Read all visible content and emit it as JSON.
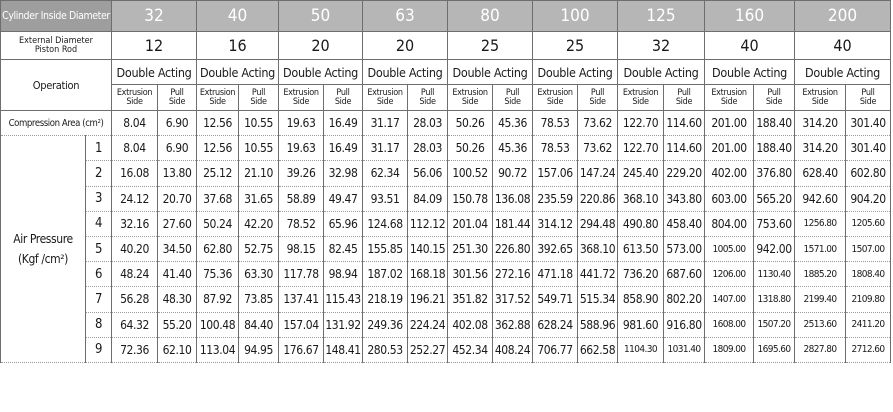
{
  "header": {
    "bore_label": "Cylinder Inside Diameter",
    "bores": [
      "32",
      "40",
      "50",
      "63",
      "80",
      "100",
      "125",
      "160",
      "200"
    ]
  },
  "rod": {
    "label_line1": "External Diameter",
    "label_line2": "Piston Rod",
    "values": [
      "12",
      "16",
      "20",
      "20",
      "25",
      "25",
      "32",
      "40",
      "40"
    ]
  },
  "operation": {
    "label": "Operation",
    "mode": "Double Acting",
    "extrusion_l1": "Extrusion",
    "extrusion_l2": "Side",
    "pull_l1": "Pull",
    "pull_l2": "Side"
  },
  "compression": {
    "label": "Compression Area (cm²)",
    "values": [
      "8.04",
      "6.90",
      "12.56",
      "10.55",
      "19.63",
      "16.49",
      "31.17",
      "28.03",
      "50.26",
      "45.36",
      "78.53",
      "73.62",
      "122.70",
      "114.60",
      "201.00",
      "188.40",
      "314.20",
      "301.40"
    ]
  },
  "air_pressure": {
    "label_line1": "Air Pressure",
    "label_line2": "(Kgf /cm²)",
    "rows": [
      {
        "p": "1",
        "v": [
          "8.04",
          "6.90",
          "12.56",
          "10.55",
          "19.63",
          "16.49",
          "31.17",
          "28.03",
          "50.26",
          "45.36",
          "78.53",
          "73.62",
          "122.70",
          "114.60",
          "201.00",
          "188.40",
          "314.20",
          "301.40"
        ]
      },
      {
        "p": "2",
        "v": [
          "16.08",
          "13.80",
          "25.12",
          "21.10",
          "39.26",
          "32.98",
          "62.34",
          "56.06",
          "100.52",
          "90.72",
          "157.06",
          "147.24",
          "245.40",
          "229.20",
          "402.00",
          "376.80",
          "628.40",
          "602.80"
        ]
      },
      {
        "p": "3",
        "v": [
          "24.12",
          "20.70",
          "37.68",
          "31.65",
          "58.89",
          "49.47",
          "93.51",
          "84.09",
          "150.78",
          "136.08",
          "235.59",
          "220.86",
          "368.10",
          "343.80",
          "603.00",
          "565.20",
          "942.60",
          "904.20"
        ]
      },
      {
        "p": "4",
        "v": [
          "32.16",
          "27.60",
          "50.24",
          "42.20",
          "78.52",
          "65.96",
          "124.68",
          "112.12",
          "201.04",
          "181.44",
          "314.12",
          "294.48",
          "490.80",
          "458.40",
          "804.00",
          "753.60",
          "1256.80",
          "1205.60"
        ]
      },
      {
        "p": "5",
        "v": [
          "40.20",
          "34.50",
          "62.80",
          "52.75",
          "98.15",
          "82.45",
          "155.85",
          "140.15",
          "251.30",
          "226.80",
          "392.65",
          "368.10",
          "613.50",
          "573.00",
          "1005.00",
          "942.00",
          "1571.00",
          "1507.00"
        ]
      },
      {
        "p": "6",
        "v": [
          "48.24",
          "41.40",
          "75.36",
          "63.30",
          "117.78",
          "98.94",
          "187.02",
          "168.18",
          "301.56",
          "272.16",
          "471.18",
          "441.72",
          "736.20",
          "687.60",
          "1206.00",
          "1130.40",
          "1885.20",
          "1808.40"
        ]
      },
      {
        "p": "7",
        "v": [
          "56.28",
          "48.30",
          "87.92",
          "73.85",
          "137.41",
          "115.43",
          "218.19",
          "196.21",
          "351.82",
          "317.52",
          "549.71",
          "515.34",
          "858.90",
          "802.20",
          "1407.00",
          "1318.80",
          "2199.40",
          "2109.80"
        ]
      },
      {
        "p": "8",
        "v": [
          "64.32",
          "55.20",
          "100.48",
          "84.40",
          "157.04",
          "131.92",
          "249.36",
          "224.24",
          "402.08",
          "362.88",
          "628.24",
          "588.96",
          "981.60",
          "916.80",
          "1608.00",
          "1507.20",
          "2513.60",
          "2411.20"
        ]
      },
      {
        "p": "9",
        "v": [
          "72.36",
          "62.10",
          "113.04",
          "94.95",
          "176.67",
          "148.41",
          "280.53",
          "252.27",
          "452.34",
          "408.24",
          "706.77",
          "662.58",
          "1104.30",
          "1031.40",
          "1809.00",
          "1695.60",
          "2827.80",
          "2712.60"
        ]
      }
    ]
  }
}
